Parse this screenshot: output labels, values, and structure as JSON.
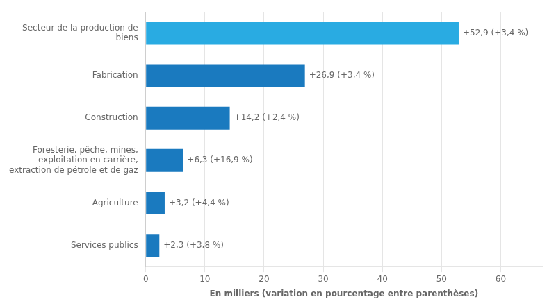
{
  "chart_data": {
    "type": "bar",
    "orientation": "horizontal",
    "categories": [
      "Services publics",
      "Agriculture",
      "Foresterie, pêche, mines,\nexploitation en carrière,\nextraction de pétrole et de gaz",
      "Construction",
      "Fabrication",
      "Secteur de la production de\nbiens"
    ],
    "values": [
      2.3,
      3.2,
      6.3,
      14.2,
      26.9,
      52.9
    ],
    "value_labels": [
      "+2,3 (+3,8 %)",
      "+3,2 (+4,4 %)",
      "+6,3 (+16,9 %)",
      "+14,2 (+2,4 %)",
      "+26,9 (+3,4 %)",
      "+52,9 (+3,4 %)"
    ],
    "data_labels": true,
    "colors": [
      "#1a7abf",
      "#1a7abf",
      "#1a7abf",
      "#1a7abf",
      "#1a7abf",
      "#29abe2"
    ],
    "xlabel": "En milliers (variation en pourcentage entre parenthèses)",
    "xlim": [
      0,
      67
    ],
    "xticks": [
      0,
      10,
      20,
      30,
      40,
      50,
      60
    ],
    "grid": true
  }
}
